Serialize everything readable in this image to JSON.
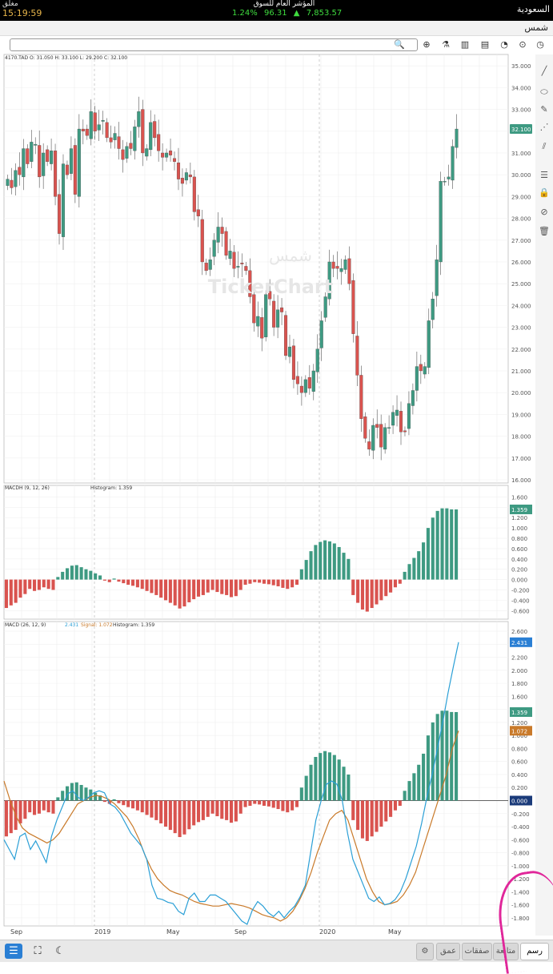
{
  "topbar": {
    "market": "السعودية",
    "status": "مغلق",
    "time": "15:19:59",
    "index_name": "المؤشر العام للسوق",
    "index_change_pct": "1.24%",
    "index_change": "96.31",
    "index_value": "7,853.57",
    "index_arrow": "▲"
  },
  "namebar": {
    "symbol_name": "شمس"
  },
  "toolbar": {
    "search_placeholder": ""
  },
  "watermark": {
    "line1": "شمس",
    "line2": "TickerChart"
  },
  "price_panel": {
    "legend": "4170.TAD  O: 31.050  H: 33.100  L: 29.200  C: 32.100",
    "last_price": "32.100",
    "axis_labels": [
      "35.000",
      "34.000",
      "33.000",
      "32.000",
      "31.000",
      "30.000",
      "29.000",
      "28.000",
      "27.000",
      "26.000",
      "25.000",
      "24.000",
      "23.000",
      "22.000",
      "21.000",
      "20.000",
      "19.000",
      "18.000",
      "17.000",
      "16.000"
    ]
  },
  "macdh_panel": {
    "legend": "MACDH  (9, 12, 26)",
    "legend2": "Histogram: 1.359",
    "last_value": "1.359",
    "axis_labels": [
      "1.600",
      "1.400",
      "1.200",
      "1.000",
      "0.800",
      "0.600",
      "0.400",
      "0.200",
      "0.000",
      "-0.200",
      "-0.400",
      "-0.600"
    ]
  },
  "macd_panel": {
    "legend": "MACD  (26, 12, 9)",
    "legend_macd": "2.431",
    "legend_signal": "Signal: 1.072",
    "legend_hist": "Histogram: 1.359",
    "last_macd": "2.431",
    "last_hist": "1.359",
    "last_signal": "1.072",
    "zero_label": "0.000",
    "axis_labels": [
      "2.600",
      "2.400",
      "2.200",
      "2.000",
      "1.800",
      "1.600",
      "1.400",
      "1.200",
      "1.000",
      "0.800",
      "0.600",
      "0.400",
      "0.200",
      "0.000",
      "-0.200",
      "-0.400",
      "-0.600",
      "-0.800",
      "-1.000",
      "-1.200",
      "-1.400",
      "-1.600",
      "-1.800"
    ]
  },
  "x_axis": {
    "labels": [
      "Sep",
      "2019",
      "May",
      "Sep",
      "2020",
      "May"
    ]
  },
  "colors": {
    "up": "#3e9a82",
    "down": "#d9534f",
    "macd": "#2a9fd6",
    "signal": "#c97a2a",
    "badge_price": "#3e9a82",
    "badge_macd": "#2a7fd4"
  },
  "bottom": {
    "tabs": [
      "رسم",
      "متابعة",
      "صفقات",
      "عمق"
    ]
  },
  "chart_data": [
    {
      "type": "candlestick",
      "title": "4170.TAD",
      "ylim": [
        16,
        35
      ],
      "last": {
        "open": 31.05,
        "high": 33.1,
        "low": 29.2,
        "close": 32.1
      },
      "closes": [
        29.8,
        29.4,
        30.2,
        30.0,
        31.2,
        30.5,
        31.5,
        31.4,
        29.9,
        31.0,
        30.6,
        31.1,
        29.0,
        27.3,
        30.5,
        30.0,
        31.2,
        29.1,
        32.1,
        32.0,
        31.8,
        32.9,
        32.0,
        32.3,
        32.5,
        31.7,
        31.5,
        31.9,
        31.2,
        30.7,
        31.3,
        31.2,
        32.2,
        32.9,
        31.0,
        31.2,
        32.4,
        31.7,
        31.1,
        30.8,
        31.0,
        30.9,
        30.6,
        29.8,
        29.6,
        30.1,
        29.9,
        28.3,
        28.1,
        26.0,
        25.6,
        26.1,
        27.0,
        27.6,
        27.3,
        26.3,
        26.5,
        25.7,
        25.8,
        25.9,
        25.6,
        24.4,
        23.2,
        23.5,
        22.5,
        24.5,
        24.3,
        23.0,
        23.8,
        23.7,
        21.7,
        22.1,
        20.6,
        20.4,
        20.0,
        20.6,
        20.2,
        21.0,
        22.0,
        23.3,
        24.4,
        26.0,
        25.7,
        25.7,
        25.7,
        26.1,
        25.0,
        22.7,
        20.8,
        18.8,
        17.9,
        17.4,
        18.5,
        18.4,
        17.5,
        18.4,
        18.4,
        19.1,
        19.2,
        18.2,
        18.2,
        19.5,
        20.1,
        21.2,
        21.0,
        21.2,
        23.3,
        24.3,
        26.1,
        29.7,
        29.7,
        29.9,
        31.3,
        32.1
      ]
    },
    {
      "type": "bar",
      "title": "MACDH (9, 12, 26)",
      "ylim": [
        -0.7,
        1.7
      ],
      "values": [
        -0.55,
        -0.5,
        -0.45,
        -0.35,
        -0.28,
        -0.18,
        -0.22,
        -0.2,
        -0.15,
        -0.18,
        -0.2,
        0.05,
        0.15,
        0.22,
        0.27,
        0.28,
        0.24,
        0.2,
        0.17,
        0.12,
        0.08,
        -0.02,
        -0.05,
        0.02,
        -0.04,
        -0.07,
        -0.1,
        -0.12,
        -0.15,
        -0.18,
        -0.22,
        -0.26,
        -0.3,
        -0.35,
        -0.4,
        -0.45,
        -0.5,
        -0.56,
        -0.52,
        -0.44,
        -0.38,
        -0.33,
        -0.3,
        -0.25,
        -0.2,
        -0.24,
        -0.28,
        -0.3,
        -0.34,
        -0.32,
        -0.2,
        -0.1,
        -0.08,
        -0.05,
        -0.06,
        -0.08,
        -0.09,
        -0.11,
        -0.13,
        -0.16,
        -0.18,
        -0.15,
        -0.1,
        0.2,
        0.38,
        0.55,
        0.67,
        0.73,
        0.76,
        0.74,
        0.7,
        0.63,
        0.52,
        0.4,
        -0.3,
        -0.45,
        -0.58,
        -0.62,
        -0.55,
        -0.48,
        -0.4,
        -0.32,
        -0.25,
        -0.15,
        -0.08,
        0.15,
        0.3,
        0.42,
        0.55,
        0.72,
        1.0,
        1.2,
        1.33,
        1.38,
        1.38,
        1.36,
        1.359
      ]
    },
    {
      "type": "line",
      "title": "MACD (26, 12, 9)",
      "ylim": [
        -1.9,
        2.7
      ],
      "series": [
        {
          "name": "MACD",
          "values": [
            -0.6,
            -0.75,
            -0.9,
            -0.55,
            -0.5,
            -0.75,
            -0.62,
            -0.78,
            -0.95,
            -0.55,
            -0.3,
            -0.1,
            0.1,
            0.15,
            0.05,
            0.0,
            0.05,
            0.12,
            0.15,
            0.12,
            -0.05,
            -0.1,
            -0.2,
            -0.35,
            -0.5,
            -0.6,
            -0.7,
            -0.9,
            -1.3,
            -1.5,
            -1.52,
            -1.56,
            -1.58,
            -1.7,
            -1.75,
            -1.5,
            -1.42,
            -1.55,
            -1.55,
            -1.45,
            -1.45,
            -1.5,
            -1.55,
            -1.65,
            -1.75,
            -1.85,
            -1.9,
            -1.68,
            -1.55,
            -1.62,
            -1.72,
            -1.78,
            -1.7,
            -1.8,
            -1.7,
            -1.62,
            -1.48,
            -1.3,
            -0.8,
            -0.3,
            0.0,
            0.25,
            0.3,
            0.25,
            0.0,
            -0.5,
            -0.9,
            -1.1,
            -1.3,
            -1.5,
            -1.55,
            -1.48,
            -1.6,
            -1.58,
            -1.52,
            -1.4,
            -1.2,
            -0.95,
            -0.7,
            -0.35,
            0.05,
            0.4,
            0.8,
            1.2,
            1.65,
            2.05,
            2.431
          ]
        },
        {
          "name": "Signal",
          "values": [
            0.3,
            0.0,
            -0.25,
            -0.42,
            -0.5,
            -0.55,
            -0.6,
            -0.65,
            -0.6,
            -0.5,
            -0.35,
            -0.2,
            -0.05,
            0.0,
            0.05,
            0.08,
            0.06,
            0.02,
            -0.05,
            -0.15,
            -0.25,
            -0.4,
            -0.6,
            -0.85,
            -1.05,
            -1.2,
            -1.3,
            -1.38,
            -1.42,
            -1.45,
            -1.5,
            -1.55,
            -1.58,
            -1.6,
            -1.62,
            -1.62,
            -1.6,
            -1.58,
            -1.6,
            -1.62,
            -1.65,
            -1.7,
            -1.75,
            -1.78,
            -1.8,
            -1.85,
            -1.8,
            -1.7,
            -1.55,
            -1.35,
            -1.1,
            -0.8,
            -0.55,
            -0.3,
            -0.2,
            -0.15,
            -0.3,
            -0.6,
            -0.9,
            -1.2,
            -1.4,
            -1.55,
            -1.6,
            -1.58,
            -1.55,
            -1.45,
            -1.3,
            -1.1,
            -0.8,
            -0.5,
            -0.2,
            0.1,
            0.4,
            0.8,
            1.072
          ]
        },
        {
          "name": "Histogram",
          "values": [
            -0.55,
            -0.5,
            -0.45,
            -0.35,
            -0.28,
            -0.18,
            -0.22,
            -0.2,
            -0.15,
            -0.18,
            -0.2,
            0.05,
            0.15,
            0.22,
            0.27,
            0.28,
            0.24,
            0.2,
            0.17,
            0.12,
            0.08,
            -0.02,
            -0.05,
            0.02,
            -0.04,
            -0.07,
            -0.1,
            -0.12,
            -0.15,
            -0.18,
            -0.22,
            -0.26,
            -0.3,
            -0.35,
            -0.4,
            -0.45,
            -0.5,
            -0.56,
            -0.52,
            -0.44,
            -0.38,
            -0.33,
            -0.3,
            -0.25,
            -0.2,
            -0.24,
            -0.28,
            -0.3,
            -0.34,
            -0.32,
            -0.2,
            -0.1,
            -0.08,
            -0.05,
            -0.06,
            -0.08,
            -0.09,
            -0.11,
            -0.13,
            -0.16,
            -0.18,
            -0.15,
            -0.1,
            0.2,
            0.38,
            0.55,
            0.67,
            0.73,
            0.76,
            0.74,
            0.7,
            0.63,
            0.52,
            0.4,
            -0.3,
            -0.45,
            -0.58,
            -0.62,
            -0.55,
            -0.48,
            -0.4,
            -0.32,
            -0.25,
            -0.15,
            -0.08,
            0.15,
            0.3,
            0.42,
            0.55,
            0.72,
            1.0,
            1.2,
            1.33,
            1.38,
            1.38,
            1.36,
            1.359
          ]
        }
      ]
    }
  ]
}
